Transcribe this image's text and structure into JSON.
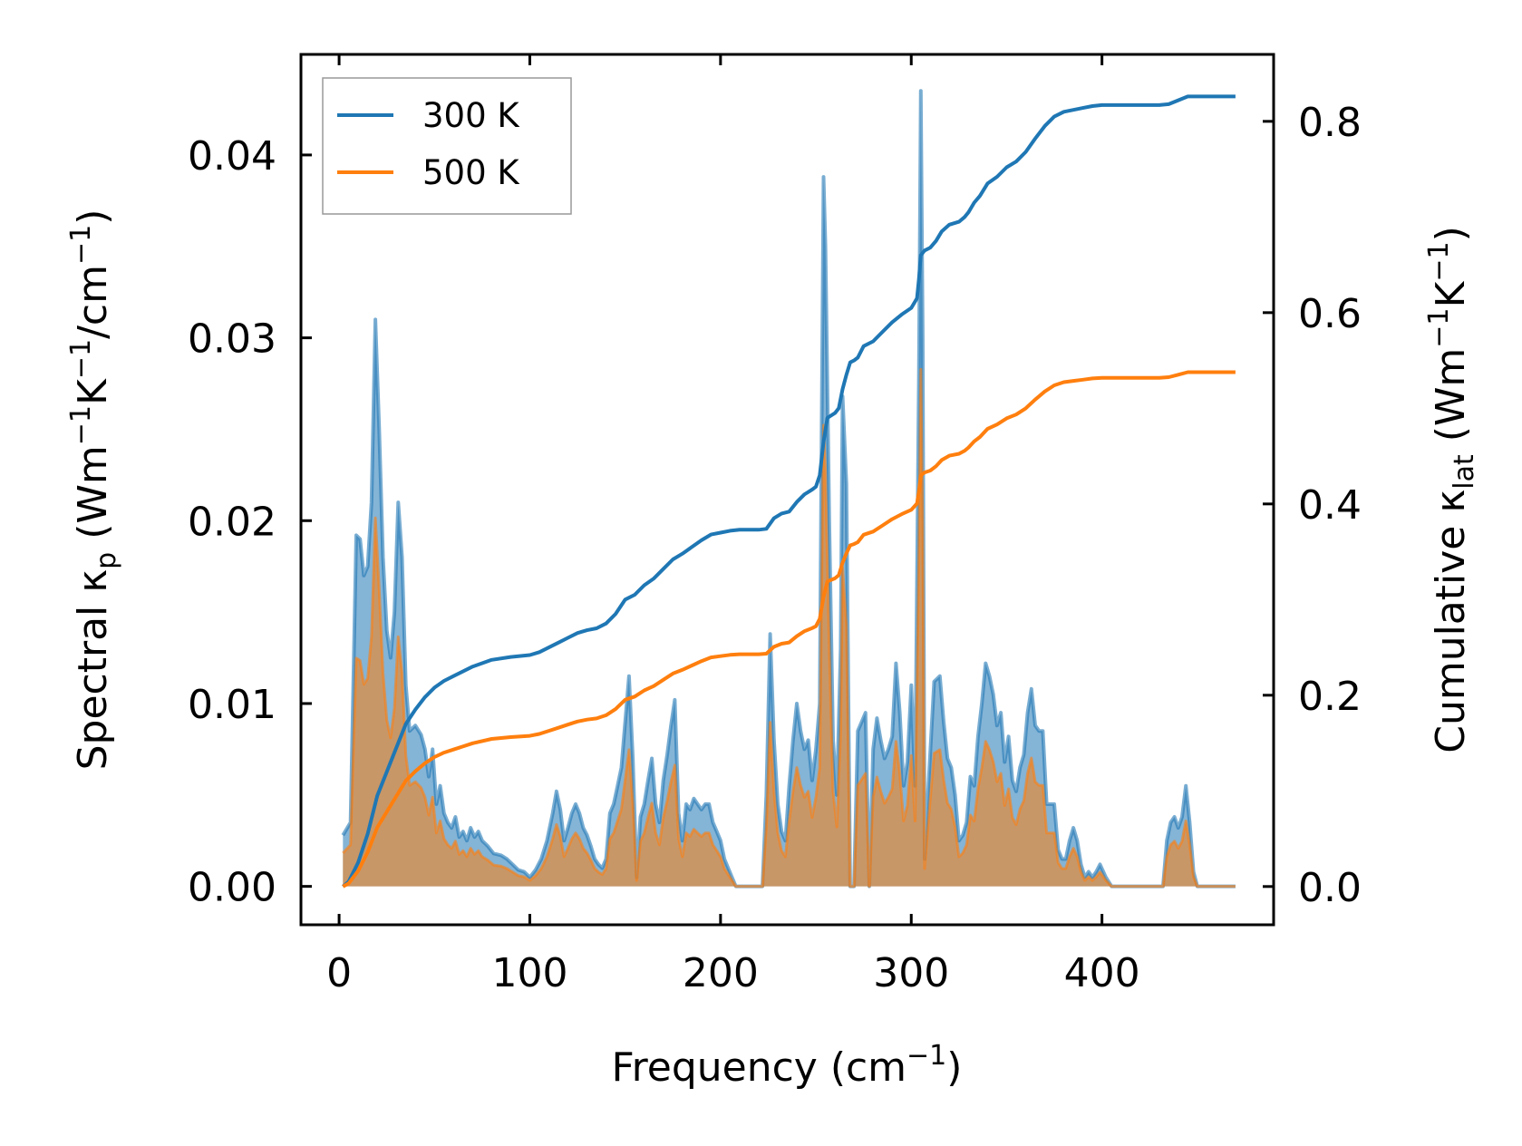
{
  "chart_data": {
    "type": "area+line",
    "twin_axes": true,
    "x": {
      "label": "Frequency (cm",
      "label_sup": "−1",
      "label_tail": ")",
      "range": [
        -20,
        490
      ],
      "ticks": [
        0,
        100,
        200,
        300,
        400
      ],
      "tick_labels": [
        "0",
        "100",
        "200",
        "300",
        "400"
      ]
    },
    "y_left": {
      "label_parts": [
        "Spectral κ",
        "p",
        " (Wm",
        "−1",
        "K",
        "−1",
        "/cm",
        "−1",
        ")"
      ],
      "range": [
        -0.0021,
        0.0455
      ],
      "ticks": [
        0.0,
        0.01,
        0.02,
        0.03,
        0.04
      ],
      "tick_labels": [
        "0.00",
        "0.01",
        "0.02",
        "0.03",
        "0.04"
      ]
    },
    "y_right": {
      "label_parts": [
        "Cumulative κ",
        "lat",
        " (Wm",
        "−1",
        "K",
        "−1",
        ")"
      ],
      "range": [
        -0.04,
        0.87
      ],
      "ticks": [
        0.0,
        0.2,
        0.4,
        0.6,
        0.8
      ],
      "tick_labels": [
        "0.0",
        "0.2",
        "0.4",
        "0.6",
        "0.8"
      ]
    },
    "legend": {
      "position": "top-left",
      "entries": [
        "300 K",
        "500 K"
      ]
    },
    "series": [
      {
        "name": "300 K",
        "color": "#1f77b4",
        "spectral": [
          [
            2,
            0.0028
          ],
          [
            6,
            0.0035
          ],
          [
            9,
            0.0192
          ],
          [
            11,
            0.019
          ],
          [
            13,
            0.017
          ],
          [
            15,
            0.0175
          ],
          [
            17,
            0.021
          ],
          [
            19,
            0.031
          ],
          [
            21,
            0.025
          ],
          [
            23,
            0.018
          ],
          [
            25,
            0.014
          ],
          [
            27,
            0.0125
          ],
          [
            29,
            0.015
          ],
          [
            31,
            0.021
          ],
          [
            33,
            0.018
          ],
          [
            35,
            0.011
          ],
          [
            37,
            0.0085
          ],
          [
            40,
            0.0088
          ],
          [
            43,
            0.0083
          ],
          [
            45,
            0.0075
          ],
          [
            47,
            0.006
          ],
          [
            49,
            0.0075
          ],
          [
            51,
            0.0045
          ],
          [
            53,
            0.0055
          ],
          [
            55,
            0.004
          ],
          [
            57,
            0.0035
          ],
          [
            59,
            0.0032
          ],
          [
            61,
            0.0038
          ],
          [
            63,
            0.0027
          ],
          [
            65,
            0.003
          ],
          [
            67,
            0.0025
          ],
          [
            69,
            0.0032
          ],
          [
            71,
            0.0027
          ],
          [
            73,
            0.003
          ],
          [
            75,
            0.0025
          ],
          [
            78,
            0.0022
          ],
          [
            81,
            0.0018
          ],
          [
            85,
            0.0017
          ],
          [
            88,
            0.0015
          ],
          [
            91,
            0.0012
          ],
          [
            94,
            0.0009
          ],
          [
            97,
            0.0008
          ],
          [
            100,
            0.0005
          ],
          [
            103,
            0.0009
          ],
          [
            106,
            0.0015
          ],
          [
            109,
            0.0025
          ],
          [
            112,
            0.004
          ],
          [
            114,
            0.0052
          ],
          [
            116,
            0.0042
          ],
          [
            118,
            0.0025
          ],
          [
            120,
            0.0032
          ],
          [
            122,
            0.004
          ],
          [
            124,
            0.0045
          ],
          [
            126,
            0.004
          ],
          [
            128,
            0.0032
          ],
          [
            130,
            0.0028
          ],
          [
            132,
            0.0022
          ],
          [
            134,
            0.0015
          ],
          [
            136,
            0.0012
          ],
          [
            138,
            0.001
          ],
          [
            140,
            0.0015
          ],
          [
            142,
            0.004
          ],
          [
            144,
            0.0045
          ],
          [
            146,
            0.0055
          ],
          [
            148,
            0.0065
          ],
          [
            150,
            0.009
          ],
          [
            152,
            0.0115
          ],
          [
            154,
            0.007
          ],
          [
            156,
            0.0005
          ],
          [
            158,
            0.0038
          ],
          [
            160,
            0.0045
          ],
          [
            162,
            0.0058
          ],
          [
            164,
            0.007
          ],
          [
            166,
            0.0045
          ],
          [
            168,
            0.0035
          ],
          [
            170,
            0.0058
          ],
          [
            172,
            0.0072
          ],
          [
            174,
            0.0088
          ],
          [
            176,
            0.0102
          ],
          [
            178,
            0.004
          ],
          [
            180,
            0.0025
          ],
          [
            182,
            0.0045
          ],
          [
            184,
            0.0042
          ],
          [
            186,
            0.0048
          ],
          [
            188,
            0.0045
          ],
          [
            190,
            0.0042
          ],
          [
            192,
            0.0045
          ],
          [
            194,
            0.0045
          ],
          [
            196,
            0.0035
          ],
          [
            198,
            0.003
          ],
          [
            200,
            0.0025
          ],
          [
            202,
            0.0015
          ],
          [
            204,
            0.001
          ],
          [
            206,
            0.0005
          ],
          [
            208,
            0.0
          ],
          [
            222,
            0.0
          ],
          [
            224,
            0.005
          ],
          [
            226,
            0.0138
          ],
          [
            228,
            0.008
          ],
          [
            230,
            0.0045
          ],
          [
            232,
            0.003
          ],
          [
            234,
            0.0025
          ],
          [
            236,
            0.0055
          ],
          [
            238,
            0.008
          ],
          [
            240,
            0.01
          ],
          [
            242,
            0.0085
          ],
          [
            244,
            0.0075
          ],
          [
            246,
            0.008
          ],
          [
            248,
            0.0058
          ],
          [
            250,
            0.0075
          ],
          [
            252,
            0.01
          ],
          [
            253,
            0.025
          ],
          [
            254,
            0.0388
          ],
          [
            255,
            0.035
          ],
          [
            257,
            0.02
          ],
          [
            259,
            0.008
          ],
          [
            261,
            0.005
          ],
          [
            263,
            0.013
          ],
          [
            264,
            0.0268
          ],
          [
            266,
            0.022
          ],
          [
            268,
            0.0
          ],
          [
            270,
            0.0
          ],
          [
            272,
            0.0085
          ],
          [
            274,
            0.009
          ],
          [
            276,
            0.0095
          ],
          [
            278,
            0.0
          ],
          [
            280,
            0.0075
          ],
          [
            282,
            0.0092
          ],
          [
            284,
            0.008
          ],
          [
            286,
            0.007
          ],
          [
            288,
            0.0075
          ],
          [
            290,
            0.0082
          ],
          [
            292,
            0.0122
          ],
          [
            294,
            0.0095
          ],
          [
            296,
            0.0055
          ],
          [
            298,
            0.0068
          ],
          [
            300,
            0.011
          ],
          [
            302,
            0.0055
          ],
          [
            304,
            0.028
          ],
          [
            305,
            0.0435
          ],
          [
            306,
            0.03
          ],
          [
            307,
            0.0015
          ],
          [
            309,
            0.0055
          ],
          [
            312,
            0.0112
          ],
          [
            315,
            0.0115
          ],
          [
            317,
            0.009
          ],
          [
            319,
            0.007
          ],
          [
            321,
            0.0065
          ],
          [
            323,
            0.005
          ],
          [
            325,
            0.0025
          ],
          [
            327,
            0.0028
          ],
          [
            329,
            0.0035
          ],
          [
            331,
            0.006
          ],
          [
            333,
            0.0055
          ],
          [
            335,
            0.0082
          ],
          [
            337,
            0.01
          ],
          [
            339,
            0.0122
          ],
          [
            341,
            0.0115
          ],
          [
            343,
            0.0105
          ],
          [
            345,
            0.0088
          ],
          [
            347,
            0.0095
          ],
          [
            349,
            0.0068
          ],
          [
            351,
            0.0082
          ],
          [
            353,
            0.0058
          ],
          [
            355,
            0.0052
          ],
          [
            357,
            0.0065
          ],
          [
            359,
            0.0072
          ],
          [
            361,
            0.0095
          ],
          [
            363,
            0.0108
          ],
          [
            365,
            0.0088
          ],
          [
            367,
            0.0085
          ],
          [
            369,
            0.0085
          ],
          [
            371,
            0.0045
          ],
          [
            373,
            0.0045
          ],
          [
            375,
            0.0045
          ],
          [
            377,
            0.002
          ],
          [
            379,
            0.0015
          ],
          [
            381,
            0.0015
          ],
          [
            383,
            0.0025
          ],
          [
            385,
            0.0032
          ],
          [
            387,
            0.0025
          ],
          [
            389,
            0.0012
          ],
          [
            391,
            0.0005
          ],
          [
            393,
            0.0008
          ],
          [
            395,
            0.0005
          ],
          [
            397,
            0.0008
          ],
          [
            399,
            0.0012
          ],
          [
            402,
            0.0005
          ],
          [
            405,
            0.0
          ],
          [
            432,
            0.0
          ],
          [
            434,
            0.0025
          ],
          [
            436,
            0.0035
          ],
          [
            438,
            0.0038
          ],
          [
            440,
            0.0032
          ],
          [
            442,
            0.0038
          ],
          [
            444,
            0.0055
          ],
          [
            446,
            0.0035
          ],
          [
            448,
            0.0008
          ],
          [
            450,
            0.0
          ],
          [
            470,
            0.0
          ]
        ],
        "cumulative": [
          [
            2,
            0.0
          ],
          [
            5,
            0.005
          ],
          [
            10,
            0.025
          ],
          [
            15,
            0.055
          ],
          [
            20,
            0.095
          ],
          [
            25,
            0.12
          ],
          [
            30,
            0.145
          ],
          [
            35,
            0.17
          ],
          [
            40,
            0.185
          ],
          [
            45,
            0.198
          ],
          [
            50,
            0.208
          ],
          [
            55,
            0.215
          ],
          [
            60,
            0.22
          ],
          [
            70,
            0.23
          ],
          [
            80,
            0.237
          ],
          [
            90,
            0.24
          ],
          [
            100,
            0.242
          ],
          [
            105,
            0.245
          ],
          [
            110,
            0.25
          ],
          [
            115,
            0.255
          ],
          [
            120,
            0.26
          ],
          [
            125,
            0.265
          ],
          [
            130,
            0.268
          ],
          [
            135,
            0.27
          ],
          [
            140,
            0.275
          ],
          [
            145,
            0.285
          ],
          [
            150,
            0.3
          ],
          [
            155,
            0.305
          ],
          [
            160,
            0.315
          ],
          [
            165,
            0.322
          ],
          [
            170,
            0.332
          ],
          [
            175,
            0.342
          ],
          [
            180,
            0.348
          ],
          [
            185,
            0.355
          ],
          [
            190,
            0.362
          ],
          [
            195,
            0.368
          ],
          [
            200,
            0.37
          ],
          [
            205,
            0.372
          ],
          [
            210,
            0.373
          ],
          [
            220,
            0.373
          ],
          [
            224,
            0.374
          ],
          [
            228,
            0.385
          ],
          [
            232,
            0.39
          ],
          [
            236,
            0.392
          ],
          [
            240,
            0.402
          ],
          [
            244,
            0.41
          ],
          [
            248,
            0.415
          ],
          [
            250,
            0.418
          ],
          [
            252,
            0.43
          ],
          [
            254,
            0.465
          ],
          [
            256,
            0.49
          ],
          [
            260,
            0.495
          ],
          [
            262,
            0.5
          ],
          [
            264,
            0.52
          ],
          [
            266,
            0.535
          ],
          [
            268,
            0.548
          ],
          [
            270,
            0.55
          ],
          [
            272,
            0.553
          ],
          [
            275,
            0.565
          ],
          [
            280,
            0.57
          ],
          [
            285,
            0.58
          ],
          [
            290,
            0.59
          ],
          [
            295,
            0.598
          ],
          [
            300,
            0.605
          ],
          [
            303,
            0.615
          ],
          [
            304,
            0.635
          ],
          [
            305,
            0.66
          ],
          [
            307,
            0.665
          ],
          [
            310,
            0.668
          ],
          [
            313,
            0.675
          ],
          [
            316,
            0.685
          ],
          [
            320,
            0.692
          ],
          [
            325,
            0.695
          ],
          [
            328,
            0.7
          ],
          [
            330,
            0.705
          ],
          [
            333,
            0.715
          ],
          [
            336,
            0.722
          ],
          [
            340,
            0.735
          ],
          [
            345,
            0.742
          ],
          [
            350,
            0.752
          ],
          [
            355,
            0.758
          ],
          [
            360,
            0.768
          ],
          [
            365,
            0.782
          ],
          [
            370,
            0.795
          ],
          [
            375,
            0.805
          ],
          [
            380,
            0.81
          ],
          [
            385,
            0.812
          ],
          [
            390,
            0.814
          ],
          [
            395,
            0.816
          ],
          [
            400,
            0.817
          ],
          [
            430,
            0.817
          ],
          [
            435,
            0.818
          ],
          [
            440,
            0.822
          ],
          [
            445,
            0.826
          ],
          [
            450,
            0.826
          ],
          [
            470,
            0.826
          ]
        ]
      },
      {
        "name": "500 K",
        "color": "#ff7f0e",
        "spectral_scale": 0.65,
        "cumulative_scale": 0.651
      }
    ]
  }
}
